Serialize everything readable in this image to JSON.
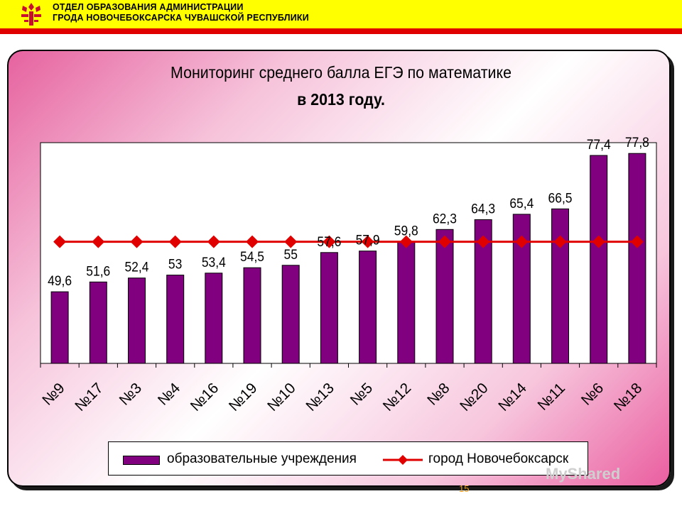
{
  "header": {
    "org_line1": "ОТДЕЛ ОБРАЗОВАНИЯ АДМИНИСТРАЦИИ",
    "org_line2": "ГРОДА НОВОЧЕБОКСАРСКА ЧУВАШСКОЙ РЕСПУБЛИКИ",
    "background_color": "#ffff00",
    "stripe_color": "#e00000",
    "emblem_icon": "chuvash-emblem-icon"
  },
  "title_line1": "Мониторинг среднего балла ЕГЭ по математике",
  "title_line2": "в 2013 году.",
  "legend": {
    "bar_label": "образовательные учреждения",
    "line_label": "город Новочебоксарск"
  },
  "watermark": "MyShared",
  "page_number": "15",
  "colors": {
    "bar": "#800080",
    "line": "#e00000"
  },
  "chart_data": {
    "type": "bar",
    "categories": [
      "№9",
      "№17",
      "№3",
      "№4",
      "№16",
      "№19",
      "№10",
      "№13",
      "№5",
      "№12",
      "№8",
      "№20",
      "№14",
      "№11",
      "№6",
      "№18"
    ],
    "series": [
      {
        "name": "образовательные учреждения",
        "type": "bar",
        "values": [
          49.6,
          51.6,
          52.4,
          53,
          53.4,
          54.5,
          55,
          57.6,
          57.9,
          59.8,
          62.3,
          64.3,
          65.4,
          66.5,
          77.4,
          77.8
        ],
        "labels": [
          "49,6",
          "51,6",
          "52,4",
          "53",
          "53,4",
          "54,5",
          "55",
          "57,6",
          "57,9",
          "59,8",
          "62,3",
          "64,3",
          "65,4",
          "66,5",
          "77,4",
          "77,8"
        ]
      },
      {
        "name": "город Новочебоксарск",
        "type": "line",
        "marker": "diamond",
        "values": [
          59.8,
          59.8,
          59.8,
          59.8,
          59.8,
          59.8,
          59.8,
          59.8,
          59.8,
          59.8,
          59.8,
          59.8,
          59.8,
          59.8,
          59.8,
          59.8
        ]
      }
    ],
    "title": "Мониторинг среднего балла ЕГЭ по математике в 2013 году.",
    "xlabel": "",
    "ylabel": "",
    "ylim": [
      35,
      80
    ],
    "grid": false,
    "legend_position": "bottom"
  }
}
